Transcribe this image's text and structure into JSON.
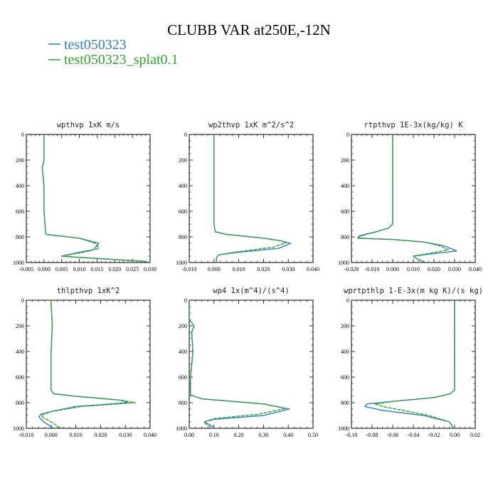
{
  "title": "CLUBB VAR at250E,-12N",
  "legend": [
    {
      "name": "test050323",
      "color": "#2f7fc1"
    },
    {
      "name": "test050323_splat0.1",
      "color": "#33a02c"
    }
  ],
  "chart_data": [
    {
      "type": "line",
      "title": "wpthvp  1xK m/s",
      "xlim": [
        -0.005,
        0.03
      ],
      "xticks": [
        "-0.005",
        "0.000",
        "0.005",
        "0.010",
        "0.015",
        "0.020",
        "0.025",
        "0.030"
      ],
      "xtick_values": [
        -0.005,
        0.0,
        0.005,
        0.01,
        0.015,
        0.02,
        0.025,
        0.03
      ],
      "ylim": [
        1000,
        0
      ],
      "yticks": [
        "0",
        "200",
        "400",
        "600",
        "800",
        "1000"
      ],
      "series": [
        {
          "name": "test050323",
          "x": [
            0.0,
            0.0,
            -0.0005,
            0.0,
            0.0,
            0.0005,
            0.01,
            0.0155,
            0.014,
            0.01,
            0.005,
            0.01,
            0.028,
            0.03
          ],
          "y": [
            0,
            200,
            260,
            400,
            600,
            780,
            810,
            850,
            900,
            920,
            950,
            960,
            990,
            1000
          ]
        },
        {
          "name": "test050323_splat0.1",
          "x": [
            0.0,
            0.0,
            -0.0005,
            0.0,
            0.0,
            0.0005,
            0.01,
            0.0145,
            0.0155,
            0.012,
            0.005,
            0.01,
            0.028,
            0.03
          ],
          "y": [
            0,
            200,
            260,
            400,
            600,
            780,
            810,
            850,
            890,
            915,
            950,
            960,
            990,
            1000
          ]
        }
      ]
    },
    {
      "type": "line",
      "title": "wp2thvp  1xK m^2/s^2",
      "xlim": [
        -0.01,
        0.04
      ],
      "xticks": [
        "-0.010",
        "0.000",
        "0.010",
        "0.020",
        "0.030",
        "0.040"
      ],
      "xtick_values": [
        -0.01,
        0.0,
        0.01,
        0.02,
        0.03,
        0.04
      ],
      "ylim": [
        1000,
        0
      ],
      "yticks": [
        "0",
        "200",
        "400",
        "600",
        "800",
        "1000"
      ],
      "series": [
        {
          "name": "test050323",
          "x": [
            0.0,
            0.0,
            0.0,
            0.0005,
            0.005,
            0.02,
            0.027,
            0.031,
            0.026,
            0.01,
            0.002,
            0.001,
            0.001
          ],
          "y": [
            0,
            400,
            700,
            760,
            780,
            810,
            830,
            850,
            890,
            920,
            940,
            960,
            1000
          ]
        },
        {
          "name": "test050323_splat0.1",
          "x": [
            0.0,
            0.0,
            0.0,
            0.0005,
            0.005,
            0.02,
            0.027,
            0.029,
            0.024,
            0.01,
            0.002,
            0.001,
            0.001
          ],
          "y": [
            0,
            400,
            700,
            760,
            780,
            810,
            830,
            845,
            880,
            915,
            940,
            960,
            1000
          ]
        }
      ]
    },
    {
      "type": "line",
      "title": "rtpthvp  1E-3x(kg/kg) K",
      "xlim": [
        -0.02,
        0.04
      ],
      "xticks": [
        "-0.020",
        "-0.010",
        "0.000",
        "0.010",
        "0.020",
        "0.030",
        "0.040"
      ],
      "xtick_values": [
        -0.02,
        -0.01,
        0.0,
        0.01,
        0.02,
        0.03,
        0.04
      ],
      "ylim": [
        1000,
        0
      ],
      "yticks": [
        "0",
        "200",
        "400",
        "600",
        "800",
        "1000"
      ],
      "series": [
        {
          "name": "test050323",
          "x": [
            0.0,
            0.0,
            0.0,
            -0.002,
            -0.008,
            -0.016,
            -0.017,
            0.0,
            0.015,
            0.025,
            0.031,
            0.02,
            0.01,
            0.012,
            0.016
          ],
          "y": [
            0,
            400,
            700,
            730,
            760,
            790,
            810,
            820,
            840,
            870,
            910,
            930,
            950,
            975,
            1000
          ]
        },
        {
          "name": "test050323_splat0.1",
          "x": [
            0.0,
            0.0,
            0.0,
            -0.002,
            -0.008,
            -0.015,
            -0.017,
            0.0,
            0.015,
            0.023,
            0.027,
            0.019,
            0.01,
            0.012,
            0.016
          ],
          "y": [
            0,
            400,
            700,
            730,
            760,
            790,
            810,
            820,
            840,
            870,
            900,
            925,
            950,
            975,
            1000
          ]
        }
      ]
    },
    {
      "type": "line",
      "title": "thlpthvp  1xK^2",
      "xlim": [
        -0.01,
        0.04
      ],
      "xticks": [
        "-0.010",
        "0.000",
        "0.010",
        "0.020",
        "0.030",
        "0.040"
      ],
      "xtick_values": [
        -0.01,
        0.0,
        0.01,
        0.02,
        0.03,
        0.04
      ],
      "ylim": [
        1000,
        0
      ],
      "yticks": [
        "0",
        "200",
        "400",
        "600",
        "800",
        "1000"
      ],
      "series": [
        {
          "name": "test050323",
          "x": [
            0.0,
            0.0,
            0.0005,
            0.0,
            0.0,
            0.0,
            0.001,
            0.01,
            0.028,
            0.031,
            0.01,
            0.0,
            -0.004,
            -0.005,
            -0.003,
            0.001
          ],
          "y": [
            0,
            30,
            200,
            400,
            600,
            700,
            730,
            750,
            780,
            800,
            830,
            870,
            890,
            910,
            950,
            1000
          ]
        },
        {
          "name": "test050323_splat0.1",
          "x": [
            0.0,
            0.0,
            0.0005,
            0.0,
            0.0,
            0.0,
            0.001,
            0.01,
            0.028,
            0.034,
            0.012,
            0.0,
            -0.003,
            -0.004,
            0.0,
            0.004
          ],
          "y": [
            0,
            30,
            200,
            400,
            600,
            700,
            730,
            750,
            780,
            800,
            830,
            870,
            890,
            905,
            950,
            1000
          ]
        }
      ]
    },
    {
      "type": "line",
      "title": "wp4  1x(m^4)/(s^4)",
      "xlim": [
        0.0,
        0.5
      ],
      "xticks": [
        "0.00",
        "0.10",
        "0.20",
        "0.30",
        "0.40",
        "0.50"
      ],
      "xtick_values": [
        0.0,
        0.1,
        0.2,
        0.3,
        0.4,
        0.5
      ],
      "ylim": [
        1000,
        0
      ],
      "yticks": [
        "0",
        "200",
        "400",
        "600",
        "800",
        "1000"
      ],
      "series": [
        {
          "name": "test050323",
          "x": [
            0.0,
            0.0,
            0.02,
            0.01,
            0.015,
            0.005,
            0.005,
            0.05,
            0.3,
            0.405,
            0.3,
            0.1,
            0.06,
            0.08,
            0.1,
            0.1
          ],
          "y": [
            0,
            150,
            200,
            250,
            400,
            600,
            740,
            770,
            810,
            850,
            900,
            930,
            950,
            970,
            990,
            1000
          ]
        },
        {
          "name": "test050323_splat0.1",
          "x": [
            0.0,
            0.0,
            0.02,
            0.01,
            0.015,
            0.005,
            0.005,
            0.05,
            0.3,
            0.39,
            0.28,
            0.1,
            0.06,
            0.07,
            0.085,
            0.09
          ],
          "y": [
            0,
            150,
            200,
            250,
            400,
            600,
            740,
            770,
            810,
            845,
            890,
            925,
            950,
            970,
            990,
            1000
          ]
        }
      ]
    },
    {
      "type": "line",
      "title": "wprtpthlp  1-E-3x(m kg K)/(s kg)",
      "xlim": [
        -0.1,
        0.02
      ],
      "xticks": [
        "-0.10",
        "-0.08",
        "-0.06",
        "-0.04",
        "-0.02",
        "0.00",
        "0.02"
      ],
      "xtick_values": [
        -0.1,
        -0.08,
        -0.06,
        -0.04,
        -0.02,
        0.0,
        0.02
      ],
      "ylim": [
        1000,
        0
      ],
      "yticks": [
        "0",
        "200",
        "400",
        "600",
        "800",
        "1000"
      ],
      "series": [
        {
          "name": "test050323",
          "x": [
            0.0,
            0.0,
            0.0,
            -0.004,
            -0.02,
            -0.06,
            -0.085,
            -0.087,
            -0.07,
            -0.03,
            -0.005,
            -0.001
          ],
          "y": [
            0,
            400,
            700,
            730,
            760,
            790,
            810,
            830,
            860,
            900,
            950,
            1000
          ]
        },
        {
          "name": "test050323_splat0.1",
          "x": [
            0.0,
            0.0,
            0.0,
            -0.004,
            -0.02,
            -0.06,
            -0.077,
            -0.07,
            -0.05,
            -0.025,
            -0.005,
            -0.001
          ],
          "y": [
            0,
            400,
            700,
            730,
            760,
            790,
            810,
            830,
            860,
            900,
            950,
            1000
          ]
        }
      ]
    }
  ]
}
